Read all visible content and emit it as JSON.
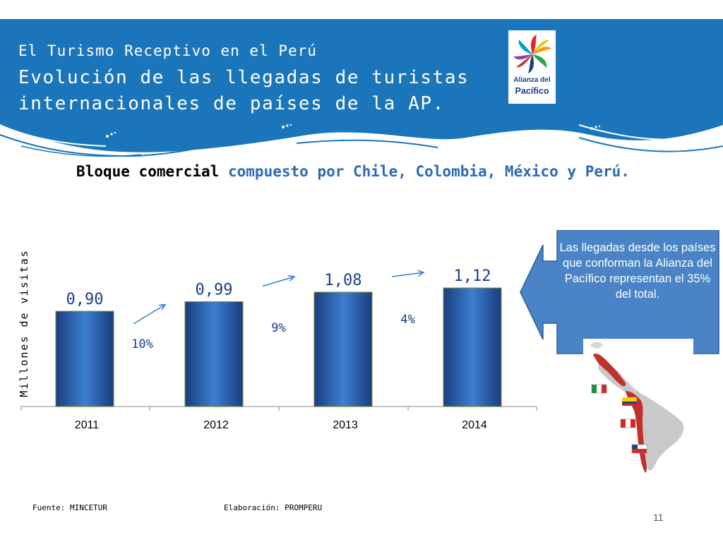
{
  "header": {
    "kicker": "El Turismo Receptivo en el Perú",
    "title_line1": "Evolución de las llegadas de turistas",
    "title_line2": "internacionales de países de la AP.",
    "band_color": "#1b75bb"
  },
  "logo": {
    "line1": "Alianza del",
    "line2": "Pacífico",
    "icon": "alianza-del-pacifico-logo"
  },
  "subtitle": {
    "bold_part": "Bloque comercial",
    "colored_part": "compuesto por Chile, Colombia, México y Perú."
  },
  "chart_data": {
    "type": "bar",
    "categories": [
      "2011",
      "2012",
      "2013",
      "2014"
    ],
    "values": [
      0.9,
      0.99,
      1.08,
      1.12
    ],
    "value_labels": [
      "0,90",
      "0,99",
      "1,08",
      "1,12"
    ],
    "growth_labels": [
      "10%",
      "9%",
      "4%"
    ],
    "ylabel": "Millones de visitas",
    "ylim": [
      0,
      1.6
    ],
    "bar_color": "#1f4e9a",
    "label_color": "#1d3e86",
    "grid": false
  },
  "callout": {
    "text": "Las llegadas desde los países que conforman la Alianza del Pacífico representan el 35% del total.",
    "color": "#4a84c6"
  },
  "map": {
    "icon": "americas-map-icon",
    "flags": [
      "mexico-flag-icon",
      "colombia-flag-icon",
      "peru-flag-icon",
      "chile-flag-icon"
    ]
  },
  "footer": {
    "source": "Fuente: MINCETUR",
    "elaboration": "Elaboración: PROMPERU",
    "page_number": "11"
  }
}
